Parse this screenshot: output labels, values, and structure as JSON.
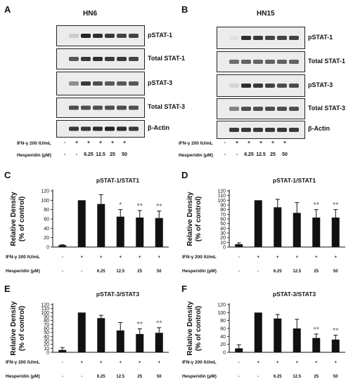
{
  "western_blots": [
    {
      "letter": "A",
      "cell_line": "HN6",
      "bands": [
        "pSTAT-1",
        "Total STAT-1",
        "pSTAT-3",
        "Total STAT-3",
        "β-Actin"
      ],
      "ifn_label": "IFN-γ 200 IU/mL",
      "hesp_label": "Hesperidin (µM)",
      "ifn_values": [
        "-",
        "+",
        "+",
        "+",
        "+",
        "+"
      ],
      "hesp_values": [
        "-",
        "-",
        "6.25",
        "12.5",
        "25",
        "50"
      ],
      "intensity": {
        "pSTAT-1": [
          0.15,
          0.95,
          0.9,
          0.85,
          0.8,
          0.8
        ],
        "Total STAT-1": [
          0.7,
          0.85,
          0.9,
          0.85,
          0.85,
          0.8
        ],
        "pSTAT-3": [
          0.45,
          0.85,
          0.75,
          0.7,
          0.7,
          0.7
        ],
        "Total STAT-3": [
          0.75,
          0.75,
          0.75,
          0.75,
          0.75,
          0.75
        ],
        "β-Actin": [
          0.85,
          0.85,
          0.9,
          0.95,
          0.9,
          0.85
        ]
      }
    },
    {
      "letter": "B",
      "cell_line": "HN15",
      "bands": [
        "pSTAT-1",
        "Total STAT-1",
        "pSTAT-3",
        "Total STAT-3",
        "β-Actin"
      ],
      "ifn_label": "IFN-γ 200 IU/mL",
      "hesp_label": "Hesperidin (µM)",
      "ifn_values": [
        "-",
        "+",
        "+",
        "+",
        "+",
        "+"
      ],
      "hesp_values": [
        "-",
        "-",
        "6.25",
        "12.5",
        "25",
        "50"
      ],
      "intensity": {
        "pSTAT-1": [
          0.05,
          0.9,
          0.85,
          0.8,
          0.8,
          0.8
        ],
        "Total STAT-1": [
          0.6,
          0.65,
          0.65,
          0.65,
          0.65,
          0.65
        ],
        "pSTAT-3": [
          0.1,
          0.9,
          0.85,
          0.8,
          0.75,
          0.75
        ],
        "Total STAT-3": [
          0.5,
          0.75,
          0.75,
          0.75,
          0.75,
          0.75
        ],
        "β-Actin": [
          0.85,
          0.85,
          0.85,
          0.85,
          0.85,
          0.85
        ]
      }
    }
  ],
  "chart_data": [
    {
      "letter": "C",
      "type": "bar",
      "title": "pSTAT-1/STAT1",
      "ylabel": "Relative Density\n(% of control)",
      "ylim": [
        0,
        120
      ],
      "yticks": [
        0,
        20,
        40,
        60,
        80,
        100,
        120
      ],
      "values": [
        4,
        100,
        92,
        65,
        63,
        62
      ],
      "errors": [
        1,
        0,
        20,
        15,
        15,
        15
      ],
      "significance": [
        "",
        "",
        "",
        "*",
        "**",
        "**"
      ],
      "ifn_label": "IFN-γ 200 IU/mL",
      "hesp_label": "Hesperidin (µM)",
      "ifn_values": [
        "-",
        "+",
        "+",
        "+",
        "+",
        "+"
      ],
      "hesp_values": [
        "-",
        "-",
        "6.25",
        "12.5",
        "25",
        "50"
      ]
    },
    {
      "letter": "D",
      "type": "bar",
      "title": "pSTAT-1/STAT1",
      "ylabel": "Relative Density\n(% of control)",
      "ylim": [
        0,
        120
      ],
      "yticks": [
        0,
        10,
        20,
        30,
        40,
        50,
        60,
        70,
        80,
        90,
        100,
        110,
        120
      ],
      "values": [
        6,
        100,
        85,
        73,
        63,
        63
      ],
      "errors": [
        3,
        0,
        17,
        22,
        17,
        17
      ],
      "significance": [
        "",
        "",
        "",
        "",
        "**",
        "**"
      ],
      "ifn_label": "IFN-γ 200 IU/mL",
      "hesp_label": "Hesperidin (µM)",
      "ifn_values": [
        "-",
        "+",
        "+",
        "+",
        "+",
        "+"
      ],
      "hesp_values": [
        "-",
        "-",
        "6.25",
        "12.5",
        "25",
        "50"
      ]
    },
    {
      "letter": "E",
      "type": "bar",
      "title": "pSTAT-3/STAT3",
      "ylabel": "Relative Density\n(% of control)",
      "ylim": [
        0,
        120
      ],
      "yticks": [
        0,
        10,
        20,
        30,
        40,
        50,
        60,
        70,
        80,
        90,
        100,
        110,
        120
      ],
      "values": [
        6,
        100,
        86,
        55,
        46,
        49
      ],
      "errors": [
        6,
        0,
        7,
        20,
        13,
        13
      ],
      "significance": [
        "",
        "",
        "",
        "",
        "**",
        "**"
      ],
      "ifn_label": "IFN-γ 200 IU/mL",
      "hesp_label": "Hesperidin (µM)",
      "ifn_values": [
        "-",
        "+",
        "+",
        "+",
        "+",
        "+"
      ],
      "hesp_values": [
        "-",
        "-",
        "6.25",
        "12.5",
        "25",
        "50"
      ]
    },
    {
      "letter": "F",
      "type": "bar",
      "title": "pSTAT-3/STAT3",
      "ylabel": "Relative Density\n(% of control)",
      "ylim": [
        0,
        120
      ],
      "yticks": [
        0,
        20,
        40,
        60,
        80,
        100,
        120
      ],
      "values": [
        10,
        100,
        85,
        60,
        36,
        32
      ],
      "errors": [
        9,
        0,
        10,
        23,
        10,
        11
      ],
      "significance": [
        "",
        "",
        "",
        "",
        "**",
        "**"
      ],
      "ifn_label": "IFN-γ 200 IU/mL",
      "hesp_label": "Hesperidin (µM)",
      "ifn_values": [
        "-",
        "+",
        "+",
        "+",
        "+",
        "+"
      ],
      "hesp_values": [
        "-",
        "-",
        "6.25",
        "12.5",
        "25",
        "50"
      ]
    }
  ]
}
